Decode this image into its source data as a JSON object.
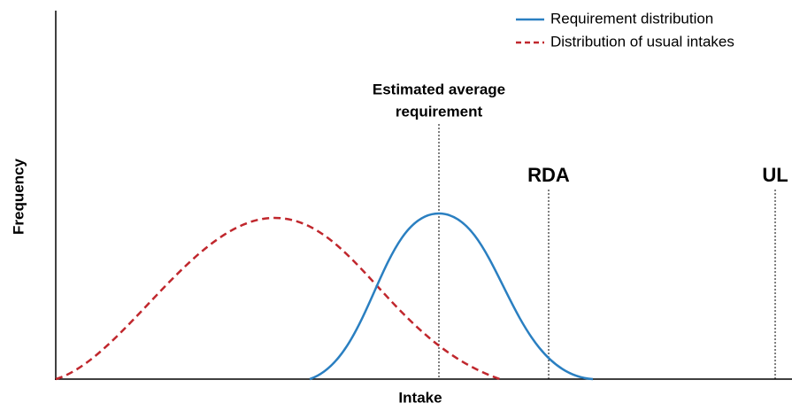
{
  "legend": {
    "items": [
      {
        "label": "Requirement distribution"
      },
      {
        "label": "Distribution of usual intakes"
      }
    ]
  },
  "axes": {
    "y_label": "Frequency",
    "x_label": "Intake"
  },
  "annotations": {
    "ear": {
      "lines": [
        "Estimated average",
        "requirement"
      ]
    },
    "rda": "RDA",
    "ul": "UL"
  }
}
